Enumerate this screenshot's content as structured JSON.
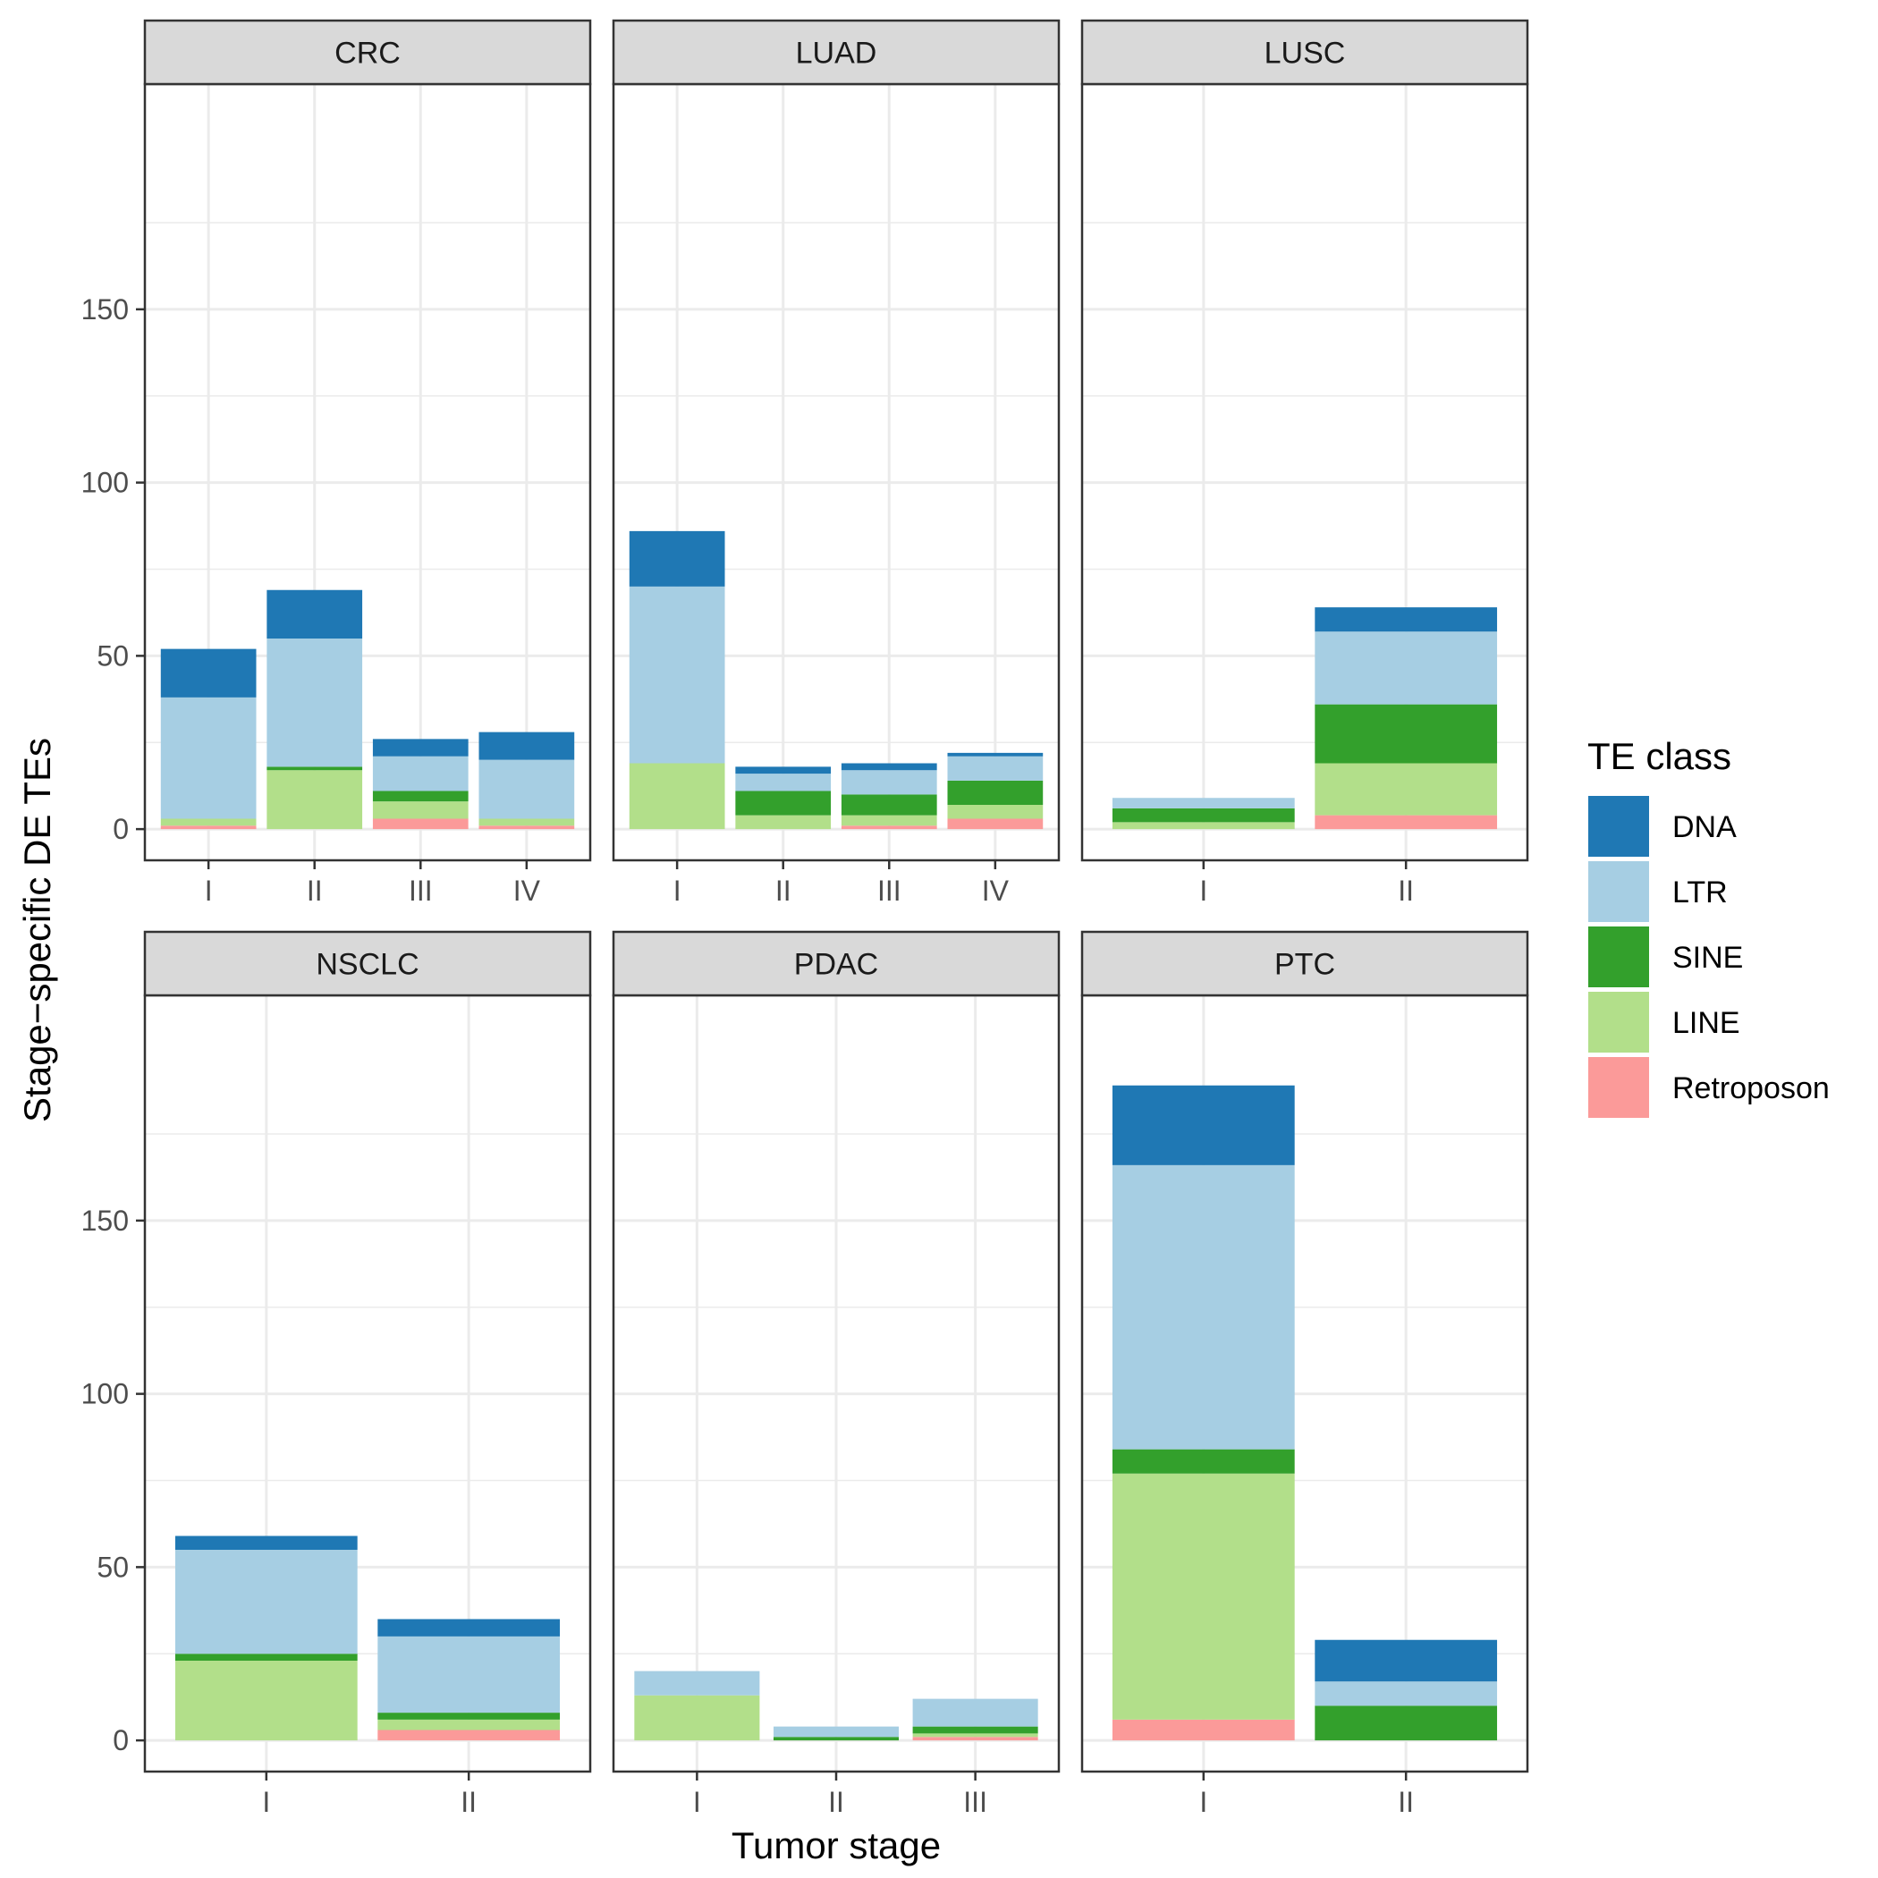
{
  "chart_data": {
    "type": "bar",
    "stacked": true,
    "facet_layout": "3 columns x 2 rows, shared y axis",
    "xlabel": "Tumor stage",
    "ylabel": "Stage−specific DE TEs",
    "ylim": [
      -9,
      215
    ],
    "yticks": [
      0,
      50,
      100,
      150
    ],
    "grid": true,
    "legend": {
      "title": "TE class",
      "position": "right",
      "items": [
        {
          "name": "DNA",
          "color": "#1F78B4"
        },
        {
          "name": "LTR",
          "color": "#A6CEE3"
        },
        {
          "name": "SINE",
          "color": "#33A02C"
        },
        {
          "name": "LINE",
          "color": "#B2DF8A"
        },
        {
          "name": "Retroposon",
          "color": "#FB9A99"
        }
      ]
    },
    "stack_order_bottom_to_top": [
      "Retroposon",
      "LINE",
      "SINE",
      "LTR",
      "DNA"
    ],
    "panels": [
      {
        "title": "CRC",
        "categories": [
          "I",
          "II",
          "III",
          "IV"
        ],
        "series": [
          {
            "name": "Retroposon",
            "values": [
              1,
              0,
              3,
              1
            ]
          },
          {
            "name": "LINE",
            "values": [
              2,
              17,
              5,
              2
            ]
          },
          {
            "name": "SINE",
            "values": [
              0,
              1,
              3,
              0
            ]
          },
          {
            "name": "LTR",
            "values": [
              35,
              37,
              10,
              17
            ]
          },
          {
            "name": "DNA",
            "values": [
              14,
              14,
              5,
              8
            ]
          }
        ]
      },
      {
        "title": "LUAD",
        "categories": [
          "I",
          "II",
          "III",
          "IV"
        ],
        "series": [
          {
            "name": "Retroposon",
            "values": [
              0,
              0,
              1,
              3
            ]
          },
          {
            "name": "LINE",
            "values": [
              19,
              4,
              3,
              4
            ]
          },
          {
            "name": "SINE",
            "values": [
              0,
              7,
              6,
              7
            ]
          },
          {
            "name": "LTR",
            "values": [
              51,
              5,
              7,
              7
            ]
          },
          {
            "name": "DNA",
            "values": [
              16,
              2,
              2,
              1
            ]
          }
        ]
      },
      {
        "title": "LUSC",
        "categories": [
          "I",
          "II"
        ],
        "series": [
          {
            "name": "Retroposon",
            "values": [
              0,
              4
            ]
          },
          {
            "name": "LINE",
            "values": [
              2,
              15
            ]
          },
          {
            "name": "SINE",
            "values": [
              4,
              17
            ]
          },
          {
            "name": "LTR",
            "values": [
              3,
              21
            ]
          },
          {
            "name": "DNA",
            "values": [
              0,
              7
            ]
          }
        ]
      },
      {
        "title": "NSCLC",
        "categories": [
          "I",
          "II"
        ],
        "series": [
          {
            "name": "Retroposon",
            "values": [
              0,
              3
            ]
          },
          {
            "name": "LINE",
            "values": [
              23,
              3
            ]
          },
          {
            "name": "SINE",
            "values": [
              2,
              2
            ]
          },
          {
            "name": "LTR",
            "values": [
              30,
              22
            ]
          },
          {
            "name": "DNA",
            "values": [
              4,
              5
            ]
          }
        ]
      },
      {
        "title": "PDAC",
        "categories": [
          "I",
          "II",
          "III"
        ],
        "series": [
          {
            "name": "Retroposon",
            "values": [
              0,
              0,
              1
            ]
          },
          {
            "name": "LINE",
            "values": [
              13,
              0,
              1
            ]
          },
          {
            "name": "SINE",
            "values": [
              0,
              1,
              2
            ]
          },
          {
            "name": "LTR",
            "values": [
              7,
              3,
              8
            ]
          },
          {
            "name": "DNA",
            "values": [
              0,
              0,
              0
            ]
          }
        ]
      },
      {
        "title": "PTC",
        "categories": [
          "I",
          "II"
        ],
        "series": [
          {
            "name": "Retroposon",
            "values": [
              6,
              0
            ]
          },
          {
            "name": "LINE",
            "values": [
              71,
              0
            ]
          },
          {
            "name": "SINE",
            "values": [
              7,
              10
            ]
          },
          {
            "name": "LTR",
            "values": [
              82,
              7
            ]
          },
          {
            "name": "DNA",
            "values": [
              23,
              12
            ]
          }
        ]
      }
    ]
  }
}
